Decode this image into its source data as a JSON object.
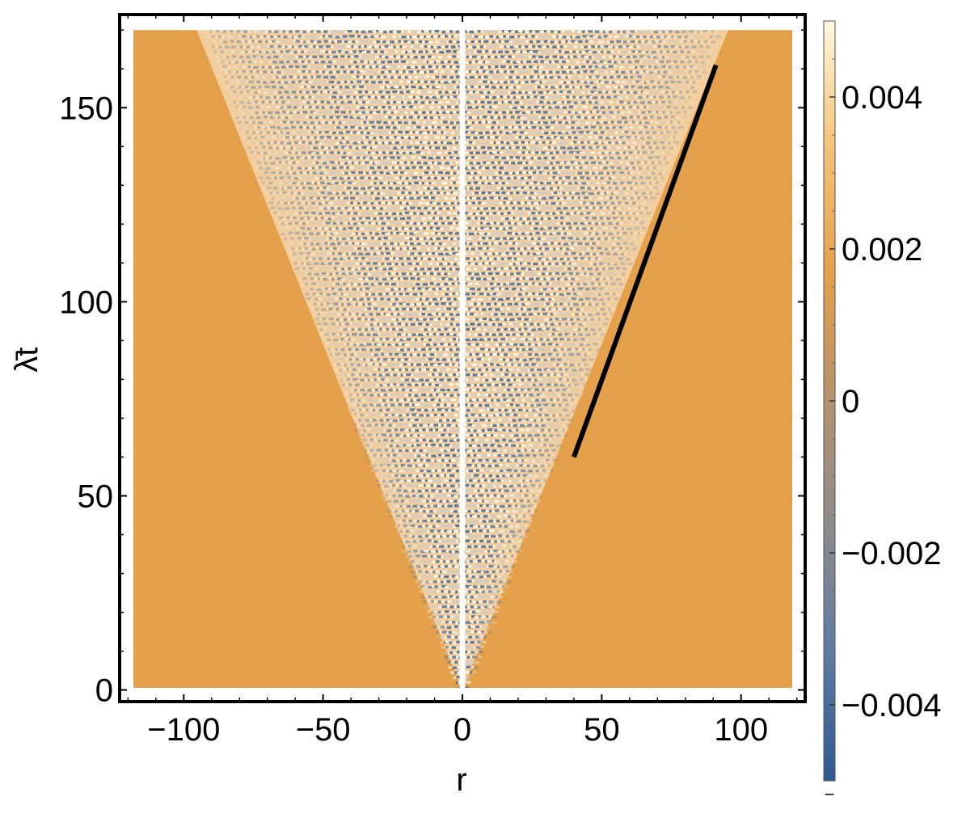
{
  "chart_data": {
    "type": "heatmap",
    "description_free": true,
    "xlabel": "r",
    "ylabel": "λ̄t",
    "xlim": [
      -123,
      123
    ],
    "ylim": [
      -3,
      174
    ],
    "data_xrange": [
      -120,
      120
    ],
    "data_yrange": [
      0,
      170
    ],
    "xticks": [
      -100,
      -50,
      0,
      50,
      100
    ],
    "xtick_labels": [
      "−100",
      "−50",
      "0",
      "50",
      "100"
    ],
    "yticks": [
      0,
      50,
      100,
      150
    ],
    "ytick_labels": [
      "0",
      "50",
      "100",
      "150"
    ],
    "pattern": {
      "cone_apex": [
        0,
        0
      ],
      "cone_half_width_slope": 0.55,
      "fringe_spacing_t": 1.3,
      "central_band_color": "#ffffff"
    },
    "overlay_line": {
      "x": [
        40,
        91
      ],
      "y": [
        60,
        161
      ],
      "color": "#000000"
    },
    "colorbar": {
      "min": -0.005,
      "max": 0.005,
      "ticks": [
        0.004,
        0.002,
        0,
        -0.002,
        -0.004
      ],
      "tick_labels": [
        "0.004",
        "0.002",
        "0",
        "−0.002",
        "−0.004"
      ],
      "bottom_label": "−",
      "colors": [
        "#2d5a91",
        "#5e7ba3",
        "#8e8a8c",
        "#b3926e",
        "#e4a04b",
        "#f4c276",
        "#fff8de"
      ]
    },
    "colors": {
      "background_value_color": "#e4a04b",
      "positive_color": "#fff6dc",
      "negative_color": "#3a6296",
      "frame": "#000000"
    },
    "grid": false,
    "legend": "none"
  }
}
